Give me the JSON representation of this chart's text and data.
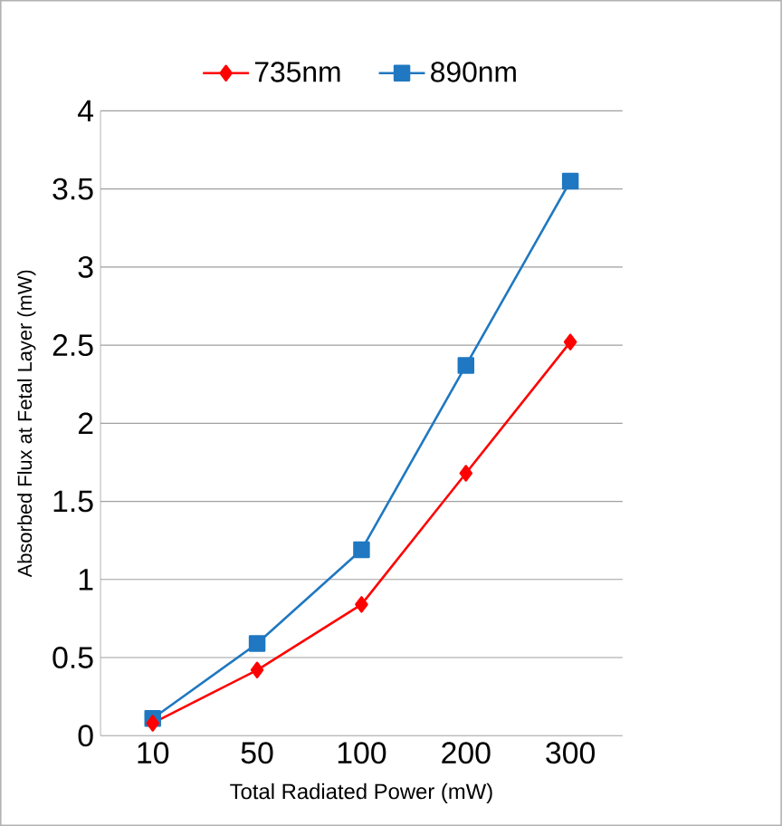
{
  "chart_data": {
    "type": "line",
    "categories": [
      "10",
      "50",
      "100",
      "200",
      "300"
    ],
    "xlabel": "Total Radiated Power (mW)",
    "ylabel": "Absorbed Flux at Fetal Layer (mW)",
    "series": [
      {
        "name": "735nm",
        "color": "#ff0000",
        "marker": "diamond",
        "values": [
          0.08,
          0.42,
          0.84,
          1.68,
          2.52
        ]
      },
      {
        "name": "890nm",
        "color": "#1f78c1",
        "marker": "square",
        "values": [
          0.11,
          0.59,
          1.19,
          2.37,
          3.55
        ]
      }
    ],
    "ylim": [
      0,
      4
    ],
    "yticks": [
      0,
      0.5,
      1,
      1.5,
      2,
      2.5,
      3,
      3.5,
      4
    ],
    "grid": "y",
    "legend": "top"
  }
}
